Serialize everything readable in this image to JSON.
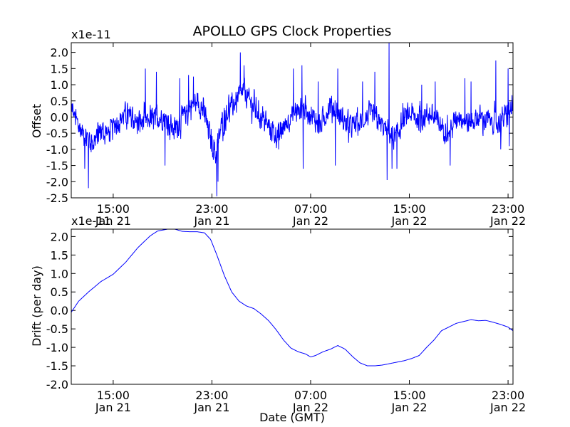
{
  "title": "APOLLO GPS Clock Properties",
  "chart_data": [
    {
      "type": "line",
      "ylabel": "Offset",
      "y_multiplier": "x1e-11",
      "xlabel": "",
      "ylim": [
        -2.5,
        2.3
      ],
      "xlim_hours_from_Jan21_00GMT": [
        11.6,
        47.4
      ],
      "yticks": [
        -2.5,
        -2.0,
        -1.5,
        -1.0,
        -0.5,
        0.0,
        0.5,
        1.0,
        1.5,
        2.0
      ],
      "ytick_labels": [
        "-2.5",
        "-2.0",
        "-1.5",
        "-1.0",
        "-0.5",
        "0.0",
        "0.5",
        "1.0",
        "1.5",
        "2.0"
      ],
      "xticks": [
        {
          "t": 15,
          "time": "15:00",
          "date": "Jan 21"
        },
        {
          "t": 23,
          "time": "23:00",
          "date": "Jan 21"
        },
        {
          "t": 31,
          "time": "07:00",
          "date": "Jan 22"
        },
        {
          "t": 39,
          "time": "15:00",
          "date": "Jan 22"
        },
        {
          "t": 47,
          "time": "23:00",
          "date": "Jan 22"
        }
      ],
      "color": "#0000ff",
      "baseline": [
        [
          11.6,
          0.3
        ],
        [
          12.2,
          -0.3
        ],
        [
          12.8,
          -0.6
        ],
        [
          13.4,
          -0.8
        ],
        [
          14.0,
          -0.4
        ],
        [
          14.6,
          -0.5
        ],
        [
          15.2,
          -0.2
        ],
        [
          16.0,
          0.1
        ],
        [
          17.0,
          -0.2
        ],
        [
          18.0,
          -0.1
        ],
        [
          19.0,
          0.0
        ],
        [
          20.0,
          -0.4
        ],
        [
          20.5,
          -0.1
        ],
        [
          21.2,
          0.3
        ],
        [
          21.8,
          0.5
        ],
        [
          22.3,
          0.2
        ],
        [
          22.8,
          -0.5
        ],
        [
          23.3,
          -1.2
        ],
        [
          23.8,
          -0.2
        ],
        [
          24.3,
          0.2
        ],
        [
          25.0,
          0.5
        ],
        [
          25.6,
          0.8
        ],
        [
          26.2,
          0.4
        ],
        [
          27.0,
          0.0
        ],
        [
          27.8,
          -0.4
        ],
        [
          28.4,
          -0.6
        ],
        [
          29.0,
          -0.2
        ],
        [
          29.6,
          0.1
        ],
        [
          30.4,
          0.3
        ],
        [
          31.0,
          0.1
        ],
        [
          31.8,
          -0.3
        ],
        [
          32.6,
          0.4
        ],
        [
          33.4,
          0.0
        ],
        [
          34.2,
          -0.3
        ],
        [
          35.0,
          -0.2
        ],
        [
          35.8,
          0.1
        ],
        [
          36.6,
          -0.2
        ],
        [
          37.2,
          -0.4
        ],
        [
          37.8,
          -0.7
        ],
        [
          38.4,
          -0.2
        ],
        [
          39.0,
          0.1
        ],
        [
          39.8,
          -0.1
        ],
        [
          40.6,
          0.1
        ],
        [
          41.4,
          -0.2
        ],
        [
          42.2,
          -0.5
        ],
        [
          43.0,
          0.1
        ],
        [
          43.8,
          -0.2
        ],
        [
          44.6,
          0.0
        ],
        [
          45.4,
          -0.1
        ],
        [
          46.2,
          -0.2
        ],
        [
          47.0,
          0.1
        ],
        [
          47.4,
          0.3
        ]
      ],
      "spikes": [
        [
          13.0,
          -2.2
        ],
        [
          12.7,
          -1.6
        ],
        [
          17.6,
          1.5
        ],
        [
          18.5,
          1.4
        ],
        [
          19.2,
          -1.5
        ],
        [
          20.4,
          1.2
        ],
        [
          21.1,
          1.3
        ],
        [
          21.5,
          1.25
        ],
        [
          23.4,
          -2.45
        ],
        [
          23.5,
          -2.0
        ],
        [
          25.3,
          2.0
        ],
        [
          25.6,
          1.6
        ],
        [
          28.4,
          -1.0
        ],
        [
          29.6,
          1.5
        ],
        [
          30.3,
          1.6
        ],
        [
          30.4,
          -1.6
        ],
        [
          31.6,
          1.1
        ],
        [
          33.0,
          -1.5
        ],
        [
          33.2,
          1.5
        ],
        [
          35.2,
          1.1
        ],
        [
          36.2,
          1.4
        ],
        [
          37.2,
          -1.95
        ],
        [
          37.35,
          2.3
        ],
        [
          37.6,
          -1.6
        ],
        [
          38.0,
          -1.6
        ],
        [
          40.0,
          1.0
        ],
        [
          41.1,
          1.1
        ],
        [
          42.3,
          -1.5
        ],
        [
          43.5,
          1.2
        ],
        [
          44.0,
          1.1
        ],
        [
          46.0,
          1.75
        ],
        [
          46.4,
          -1.0
        ],
        [
          47.0,
          1.5
        ],
        [
          47.1,
          -0.9
        ]
      ],
      "noise_amplitude": 0.45
    },
    {
      "type": "line",
      "ylabel": "Drift (per day)",
      "y_multiplier": "x1e-11",
      "xlabel": "Date (GMT)",
      "ylim": [
        -2.0,
        2.2
      ],
      "xlim_hours_from_Jan21_00GMT": [
        11.6,
        47.4
      ],
      "yticks": [
        -2.0,
        -1.5,
        -1.0,
        -0.5,
        0.0,
        0.5,
        1.0,
        1.5,
        2.0
      ],
      "ytick_labels": [
        "-2.0",
        "-1.5",
        "-1.0",
        "-0.5",
        "0.0",
        "0.5",
        "1.0",
        "1.5",
        "2.0"
      ],
      "xticks": [
        {
          "t": 15,
          "time": "15:00",
          "date": "Jan 21"
        },
        {
          "t": 23,
          "time": "23:00",
          "date": "Jan 21"
        },
        {
          "t": 31,
          "time": "07:00",
          "date": "Jan 22"
        },
        {
          "t": 39,
          "time": "15:00",
          "date": "Jan 22"
        },
        {
          "t": 47,
          "time": "23:00",
          "date": "Jan 22"
        }
      ],
      "color": "#0000ff",
      "points": [
        [
          11.6,
          -0.05
        ],
        [
          12.2,
          0.25
        ],
        [
          13.0,
          0.5
        ],
        [
          14.0,
          0.78
        ],
        [
          15.0,
          0.98
        ],
        [
          16.0,
          1.3
        ],
        [
          17.0,
          1.7
        ],
        [
          18.0,
          2.02
        ],
        [
          18.6,
          2.15
        ],
        [
          19.4,
          2.2
        ],
        [
          20.0,
          2.2
        ],
        [
          20.6,
          2.14
        ],
        [
          21.2,
          2.13
        ],
        [
          21.8,
          2.13
        ],
        [
          22.4,
          2.1
        ],
        [
          22.9,
          1.92
        ],
        [
          23.4,
          1.5
        ],
        [
          24.0,
          0.95
        ],
        [
          24.6,
          0.5
        ],
        [
          25.2,
          0.25
        ],
        [
          25.8,
          0.12
        ],
        [
          26.4,
          0.05
        ],
        [
          27.0,
          -0.1
        ],
        [
          27.6,
          -0.28
        ],
        [
          28.2,
          -0.52
        ],
        [
          28.8,
          -0.8
        ],
        [
          29.4,
          -1.02
        ],
        [
          30.0,
          -1.12
        ],
        [
          30.6,
          -1.18
        ],
        [
          31.0,
          -1.26
        ],
        [
          31.4,
          -1.22
        ],
        [
          32.0,
          -1.12
        ],
        [
          32.6,
          -1.05
        ],
        [
          33.2,
          -0.95
        ],
        [
          33.8,
          -1.05
        ],
        [
          34.4,
          -1.25
        ],
        [
          35.0,
          -1.42
        ],
        [
          35.6,
          -1.5
        ],
        [
          36.2,
          -1.5
        ],
        [
          36.8,
          -1.48
        ],
        [
          37.4,
          -1.44
        ],
        [
          38.0,
          -1.4
        ],
        [
          38.6,
          -1.36
        ],
        [
          39.2,
          -1.3
        ],
        [
          39.8,
          -1.22
        ],
        [
          40.4,
          -1.0
        ],
        [
          41.0,
          -0.8
        ],
        [
          41.6,
          -0.55
        ],
        [
          42.2,
          -0.45
        ],
        [
          42.8,
          -0.35
        ],
        [
          43.4,
          -0.3
        ],
        [
          44.0,
          -0.25
        ],
        [
          44.6,
          -0.28
        ],
        [
          45.2,
          -0.27
        ],
        [
          45.8,
          -0.32
        ],
        [
          46.4,
          -0.38
        ],
        [
          47.0,
          -0.45
        ],
        [
          47.4,
          -0.55
        ]
      ]
    }
  ]
}
